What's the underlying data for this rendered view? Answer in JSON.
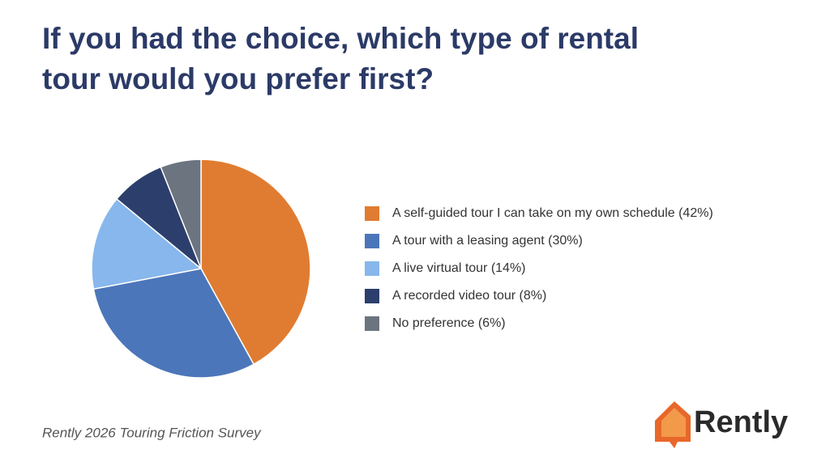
{
  "chart_data": {
    "type": "pie",
    "title": "If you had the choice, which type of rental tour would you prefer first?",
    "categories": [
      "A self-guided tour I can take on my own schedule (42%)",
      "A tour with a leasing agent (30%)",
      "A live virtual tour (14%)",
      "A recorded video tour (8%)",
      "No preference (6%)"
    ],
    "values": [
      42,
      30,
      14,
      8,
      6
    ],
    "colors": [
      "#e07c31",
      "#4c76ba",
      "#87b7ec",
      "#2c3e6c",
      "#6c7480"
    ],
    "legend": "right",
    "source": "Rently 2026 Touring Friction Survey"
  },
  "logo": "Rently"
}
